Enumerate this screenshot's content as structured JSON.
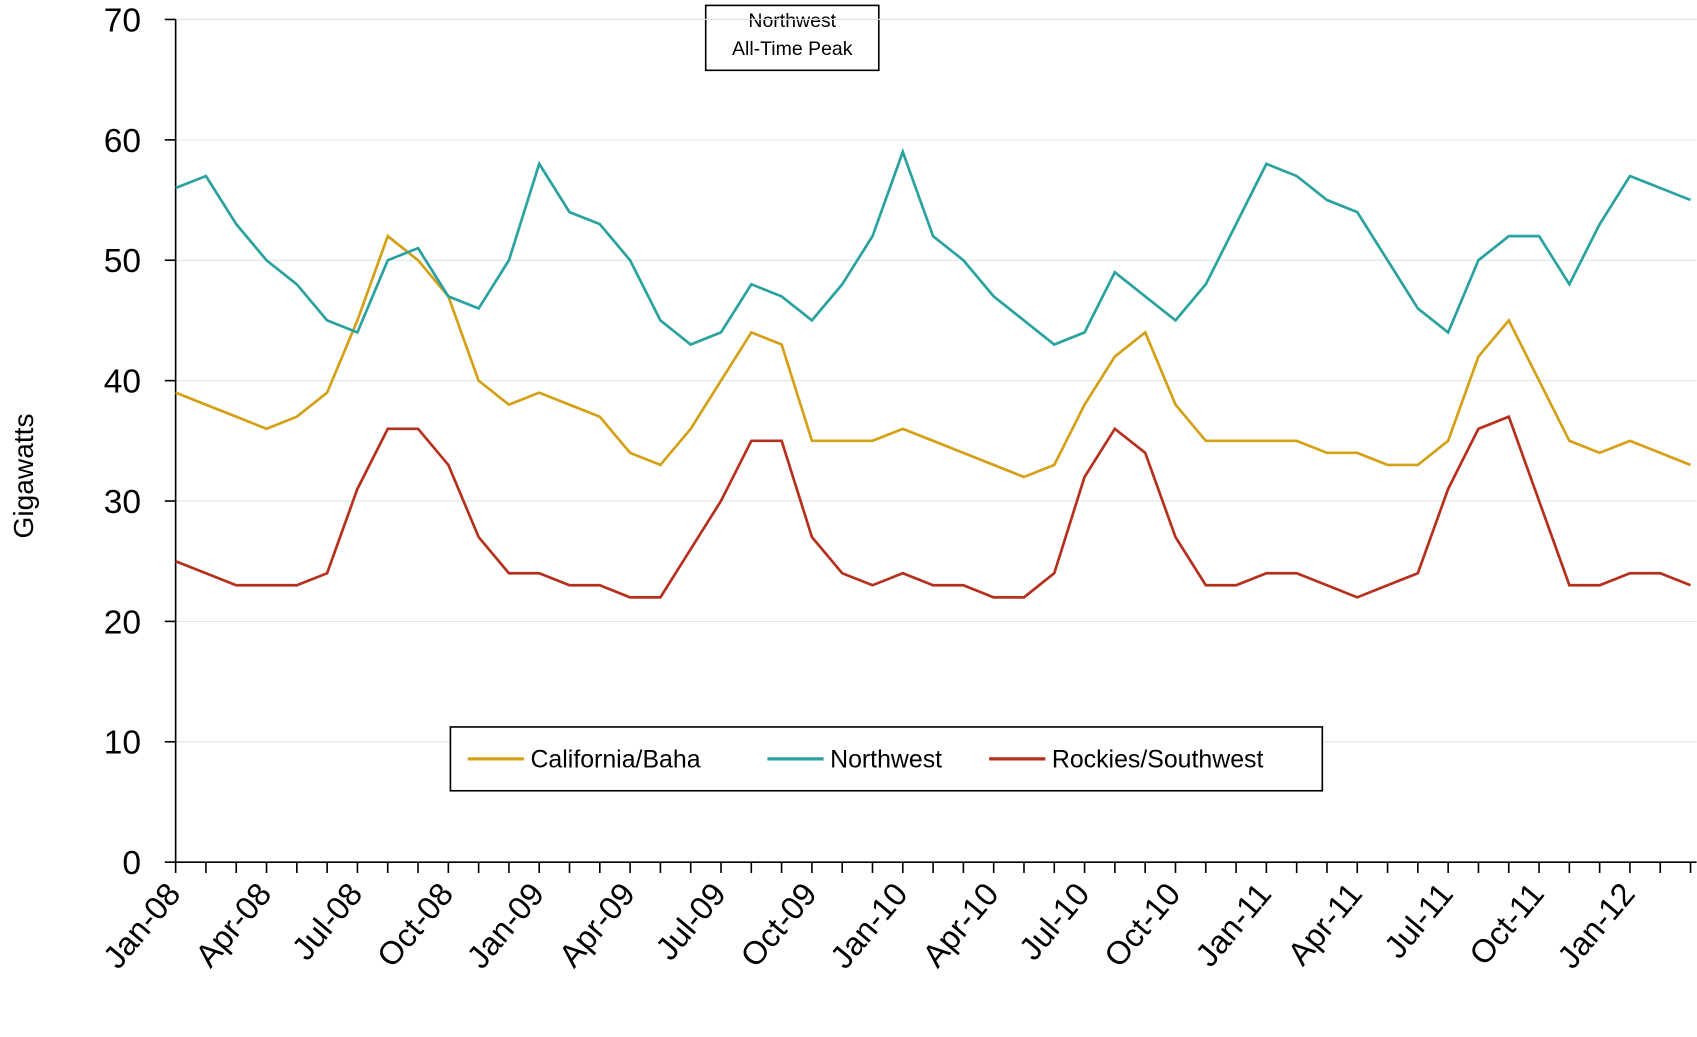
{
  "chart_data": {
    "type": "line",
    "ylabel": "Gigawatts",
    "annotation": [
      "Northwest",
      "All-Time Peak"
    ],
    "x": [
      "Jan-08",
      null,
      null,
      "Apr-08",
      null,
      null,
      "Jul-08",
      null,
      null,
      "Oct-08",
      null,
      null,
      "Jan-09",
      null,
      null,
      "Apr-09",
      null,
      null,
      "Jul-09",
      null,
      null,
      "Oct-09",
      null,
      null,
      "Jan-10",
      null,
      null,
      "Apr-10",
      null,
      null,
      "Jul-10",
      null,
      null,
      "Oct-10",
      null,
      null,
      "Jan-11",
      null,
      null,
      "Apr-11",
      null,
      null,
      "Jul-11",
      null,
      null,
      "Oct-11",
      null,
      null,
      "Jan-12",
      null,
      null
    ],
    "series": [
      {
        "name": "California/Baha",
        "color": "#d4a017",
        "values": [
          39,
          38,
          37,
          36,
          37,
          39,
          45,
          52,
          50,
          47,
          40,
          38,
          39,
          38,
          37,
          34,
          33,
          36,
          40,
          44,
          43,
          35,
          35,
          35,
          36,
          35,
          34,
          33,
          32,
          33,
          38,
          42,
          44,
          38,
          35,
          35,
          35,
          35,
          34,
          34,
          33,
          33,
          35,
          42,
          45,
          40,
          35,
          34,
          35,
          34,
          33
        ]
      },
      {
        "name": "Northwest",
        "color": "#2aa3a0",
        "values": [
          56,
          57,
          53,
          50,
          48,
          45,
          44,
          50,
          51,
          47,
          46,
          50,
          58,
          54,
          53,
          50,
          45,
          43,
          44,
          48,
          47,
          45,
          48,
          52,
          59,
          52,
          50,
          47,
          45,
          43,
          44,
          49,
          47,
          45,
          48,
          53,
          58,
          57,
          55,
          54,
          50,
          46,
          44,
          50,
          52,
          52,
          48,
          53,
          57,
          56,
          55
        ]
      },
      {
        "name": "Rockies/Southwest",
        "color": "#b5301e",
        "values": [
          25,
          24,
          23,
          23,
          23,
          24,
          31,
          36,
          36,
          33,
          27,
          24,
          24,
          23,
          23,
          22,
          22,
          26,
          30,
          35,
          35,
          27,
          24,
          23,
          24,
          23,
          23,
          22,
          22,
          24,
          32,
          36,
          34,
          27,
          23,
          23,
          24,
          24,
          23,
          22,
          23,
          24,
          31,
          36,
          37,
          30,
          23,
          23,
          24,
          24,
          23
        ]
      }
    ],
    "ylim": [
      0,
      70
    ],
    "yticks": [
      0,
      10,
      20,
      30,
      40,
      50,
      60,
      70
    ],
    "grid": true,
    "legend": "bottom"
  }
}
